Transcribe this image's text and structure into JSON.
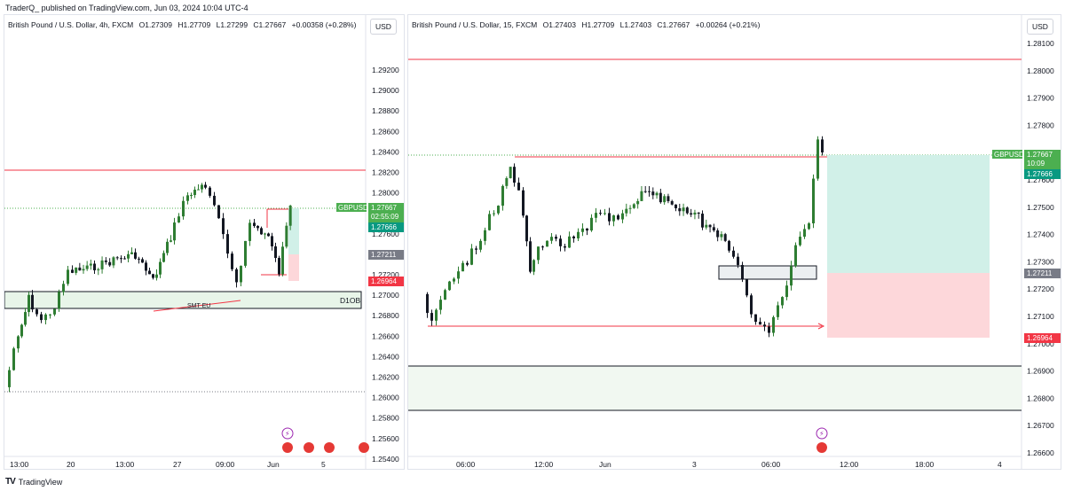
{
  "header": {
    "text": "TraderQ_ published on TradingView.com, Jun 03, 2024 10:04 UTC-4"
  },
  "footer": {
    "logo": "TV",
    "brand": "TradingView"
  },
  "colors": {
    "up": "#2e7d32",
    "down": "#131722",
    "red_line": "#f23645",
    "accent_green": "#4caf50",
    "teal": "#089981",
    "gray_tag": "#787b86"
  },
  "left": {
    "legend": {
      "symbol": "British Pound / U.S. Dollar, 4h, FXCM",
      "open": "O1.27309",
      "high": "H1.27709",
      "low": "L1.27299",
      "close": "C1.27667",
      "change": "+0.00358 (+0.28%)"
    },
    "currency": "USD",
    "price_labels": [
      "1.29200",
      "1.29000",
      "1.28800",
      "1.28600",
      "1.28400",
      "1.28200",
      "1.28000",
      "1.27800",
      "1.27600",
      "1.27400",
      "1.27200",
      "1.27000",
      "1.26800",
      "1.26600",
      "1.26400",
      "1.26200",
      "1.26000",
      "1.25800",
      "1.25600",
      "1.25400"
    ],
    "time_labels": [
      "13:00",
      "20",
      "13:00",
      "27",
      "09:00",
      "Jun",
      "5"
    ],
    "tags": {
      "symbol": "GBPUSD",
      "price": "1.27667",
      "countdown": "02:55:09",
      "bid": "1.27666",
      "level": "1.27211",
      "stop": "1.26964"
    },
    "zone_label": "D1OB",
    "annotation": "SMT EU"
  },
  "right": {
    "legend": {
      "symbol": "British Pound / U.S. Dollar, 15, FXCM",
      "open": "O1.27403",
      "high": "H1.27709",
      "low": "L1.27403",
      "close": "C1.27667",
      "change": "+0.00264 (+0.21%)"
    },
    "currency": "USD",
    "price_labels": [
      "1.28100",
      "1.28000",
      "1.27900",
      "1.27800",
      "1.27700",
      "1.27600",
      "1.27500",
      "1.27400",
      "1.27300",
      "1.27200",
      "1.27100",
      "1.27000",
      "1.26900",
      "1.26800",
      "1.26700",
      "1.26600"
    ],
    "time_labels": [
      "06:00",
      "12:00",
      "Jun",
      "3",
      "06:00",
      "12:00",
      "18:00",
      "4"
    ],
    "tags": {
      "symbol": "GBPUSD",
      "price": "1.27667",
      "countdown": "10:09",
      "bid": "1.27666",
      "level": "1.27211",
      "stop": "1.26964"
    }
  }
}
